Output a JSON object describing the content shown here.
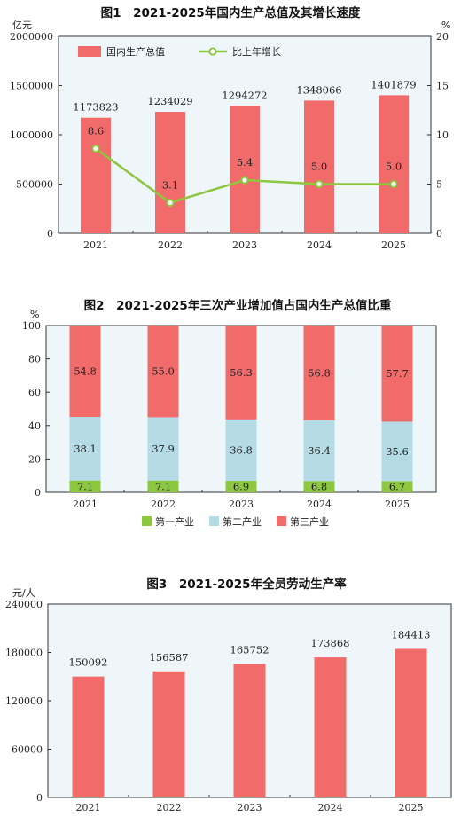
{
  "chart_data": [
    {
      "type": "bar",
      "title": "图1　2021-2025年国内生产总值及其增长速度",
      "ylabel": "亿元",
      "y2label": "%",
      "categories": [
        "2021",
        "2022",
        "2023",
        "2024",
        "2025"
      ],
      "series": [
        {
          "name": "国内生产总值",
          "type": "bar",
          "axis": "left",
          "color": "#f26b6b",
          "values": [
            1173823,
            1234029,
            1294272,
            1348066,
            1401879
          ],
          "labels": [
            "1173823",
            "1234029",
            "1294272",
            "1348066",
            "1401879"
          ]
        },
        {
          "name": "比上年增长",
          "type": "line",
          "axis": "right",
          "color": "#8dc63f",
          "values": [
            8.6,
            3.1,
            5.4,
            5.0,
            5.0
          ],
          "labels": [
            "8.6",
            "3.1",
            "5.4",
            "5.0",
            "5.0"
          ]
        }
      ],
      "ylim": [
        0,
        2000000
      ],
      "yticks": [
        "0",
        "500000",
        "1000000",
        "1500000",
        "2000000"
      ],
      "y2lim": [
        0,
        20
      ],
      "y2ticks": [
        "0",
        "5",
        "10",
        "15",
        "20"
      ],
      "legend": "top-left",
      "grid": false
    },
    {
      "type": "bar",
      "stacked": true,
      "title": "图2　2021-2025年三次产业增加值占国内生产总值比重",
      "ylabel": "%",
      "categories": [
        "2021",
        "2022",
        "2023",
        "2024",
        "2025"
      ],
      "series": [
        {
          "name": "第一产业",
          "color": "#8dc63f",
          "values": [
            7.1,
            7.1,
            6.9,
            6.8,
            6.7
          ],
          "labels": [
            "7.1",
            "7.1",
            "6.9",
            "6.8",
            "6.7"
          ]
        },
        {
          "name": "第二产业",
          "color": "#b4dbe6",
          "values": [
            38.1,
            37.9,
            36.8,
            36.4,
            35.6
          ],
          "labels": [
            "38.1",
            "37.9",
            "36.8",
            "36.4",
            "35.6"
          ]
        },
        {
          "name": "第三产业",
          "color": "#f26b6b",
          "values": [
            54.8,
            55.0,
            56.3,
            56.8,
            57.7
          ],
          "labels": [
            "54.8",
            "55.0",
            "56.3",
            "56.8",
            "57.7"
          ]
        }
      ],
      "ylim": [
        0,
        100
      ],
      "yticks": [
        "0",
        "20",
        "40",
        "60",
        "80",
        "100"
      ],
      "legend": "bottom",
      "grid": false
    },
    {
      "type": "bar",
      "title": "图3　2021-2025年全员劳动生产率",
      "ylabel": "元/人",
      "categories": [
        "2021",
        "2022",
        "2023",
        "2024",
        "2025"
      ],
      "series": [
        {
          "name": "全员劳动生产率",
          "color": "#f26b6b",
          "values": [
            150092,
            156587,
            165752,
            173868,
            184413
          ],
          "labels": [
            "150092",
            "156587",
            "165752",
            "173868",
            "184413"
          ]
        }
      ],
      "ylim": [
        0,
        240000
      ],
      "yticks": [
        "0",
        "60000",
        "120000",
        "180000",
        "240000"
      ],
      "legend": "none",
      "grid": false
    }
  ]
}
